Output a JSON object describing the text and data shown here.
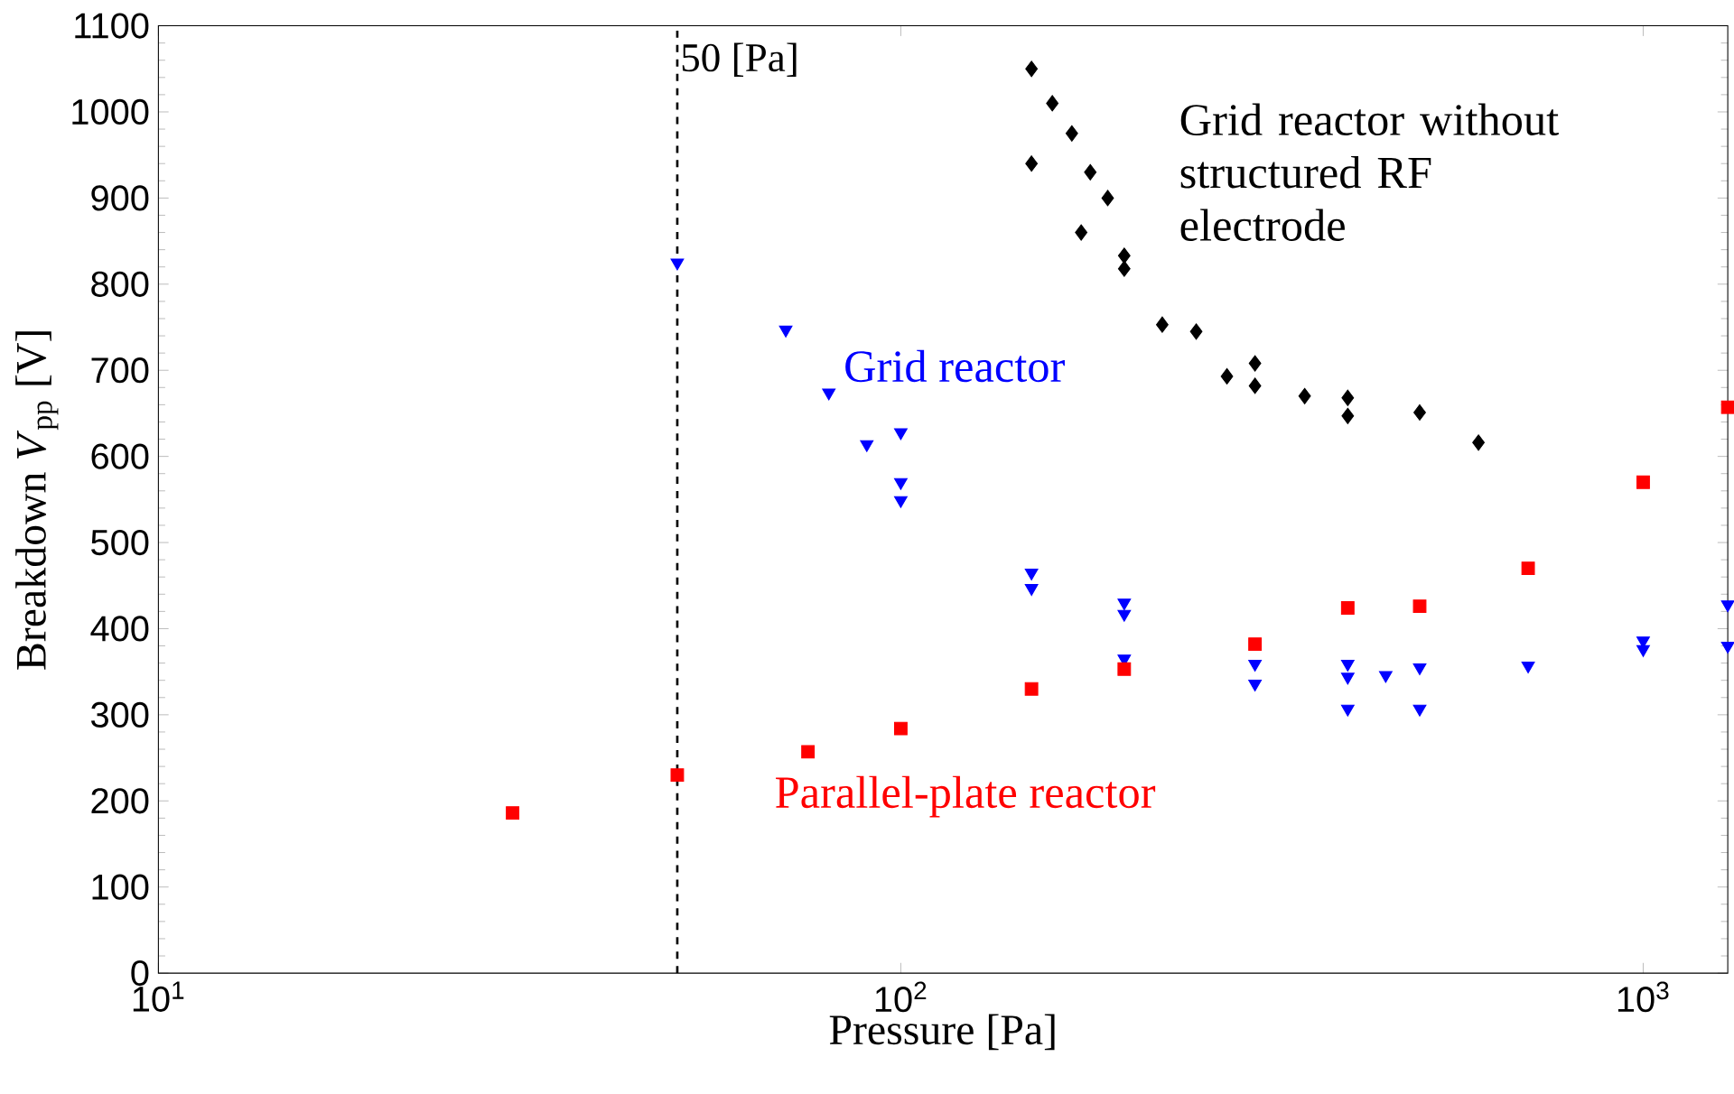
{
  "chart_data": {
    "type": "scatter",
    "xlabel": "Pressure [Pa]",
    "ylabel": "Breakdown *V*$_{pp}$ [V]",
    "log": "x",
    "xlim": [
      10,
      1300
    ],
    "ylim": [
      0,
      1100
    ],
    "xticks": [
      {
        "value": 10,
        "label": "10$^{1}$"
      },
      {
        "value": 100,
        "label": "10$^{2}$"
      },
      {
        "value": 1000,
        "label": "10$^{3}$"
      }
    ],
    "yticks": [
      0,
      100,
      200,
      300,
      400,
      500,
      600,
      700,
      800,
      900,
      1000,
      1100
    ],
    "ref_lines": [
      {
        "axis": "x",
        "value": 50,
        "label": "50 [Pa]",
        "color": "#000000",
        "line_style": "dashed"
      }
    ],
    "series": [
      {
        "name": "Grid reactor without structured RF electrode",
        "color": "#000000",
        "marker": "diamond",
        "x": [
          150,
          150,
          160,
          170,
          175,
          180,
          190,
          200,
          200,
          225,
          250,
          275,
          300,
          300,
          350,
          400,
          400,
          500,
          600
        ],
        "values": [
          1050,
          940,
          1010,
          975,
          860,
          930,
          900,
          833,
          818,
          753,
          745,
          693,
          708,
          682,
          670,
          668,
          647,
          651,
          616
        ]
      },
      {
        "name": "Grid reactor",
        "color": "#0000ff",
        "marker": "triangle",
        "x": [
          50,
          70,
          80,
          90,
          100,
          100,
          100,
          150,
          150,
          200,
          200,
          200,
          300,
          300,
          400,
          400,
          400,
          450,
          500,
          500,
          700,
          1000,
          1000,
          1300,
          1300
        ],
        "values": [
          825,
          747,
          674,
          614,
          628,
          570,
          549,
          465,
          447,
          430,
          417,
          365,
          359,
          336,
          359,
          344,
          307,
          346,
          355,
          307,
          357,
          386,
          376,
          428,
          380
        ]
      },
      {
        "name": "Parallel-plate reactor",
        "color": "#ff0000",
        "marker": "square",
        "x": [
          30,
          50,
          75,
          100,
          150,
          200,
          300,
          400,
          500,
          700,
          1000,
          1300
        ],
        "values": [
          186,
          230,
          257,
          284,
          330,
          353,
          382,
          424,
          426,
          470,
          570,
          657
        ]
      }
    ]
  }
}
